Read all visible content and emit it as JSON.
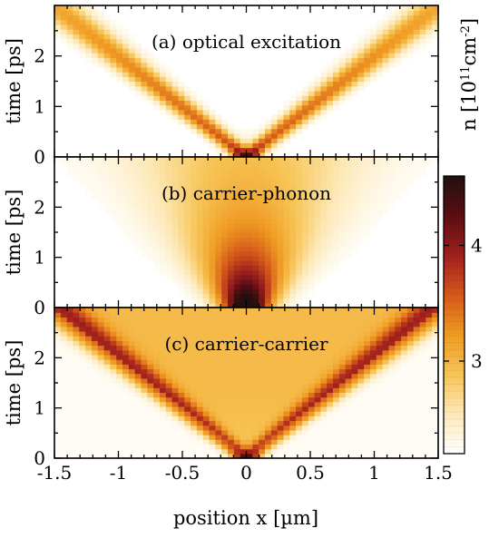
{
  "chart_data": {
    "type": "heatmap",
    "panels": [
      {
        "id": "a",
        "label": "(a) optical excitation",
        "model": "optical"
      },
      {
        "id": "b",
        "label": "(b) carrier-phonon",
        "model": "phonon"
      },
      {
        "id": "c",
        "label": "(c) carrier-carrier",
        "model": "carrier"
      }
    ],
    "xlabel": "position x [µm]",
    "ylabel": "time [ps]",
    "xlim": [
      -1.5,
      1.5
    ],
    "ylim": [
      0,
      3
    ],
    "x_ticks": [
      -1.5,
      -1,
      -0.5,
      0,
      0.5,
      1,
      1.5
    ],
    "x_tick_labels": [
      "-1.5",
      "-1",
      "-0.5",
      "0",
      "0.5",
      "1",
      "1.5"
    ],
    "y_ticks": [
      0,
      1,
      2
    ],
    "y_tick_labels": [
      "0",
      "1",
      "2"
    ],
    "colorbar": {
      "label_html": "n [10<tspan baseline-shift='super' font-size='13'>11</tspan>cm<tspan baseline-shift='super' font-size='13'>-2</tspan>]",
      "label_plain": "n [1011cm-2]",
      "range": [
        2.2,
        4.6
      ],
      "ticks": [
        3,
        4
      ],
      "tick_labels": [
        "3",
        "4"
      ],
      "colors": [
        "#ffffff",
        "#fde9b8",
        "#f7c455",
        "#ef9a22",
        "#d4581a",
        "#a0201e",
        "#5a0e12",
        "#231010"
      ]
    },
    "front_speed_um_per_ps": 0.5
  }
}
